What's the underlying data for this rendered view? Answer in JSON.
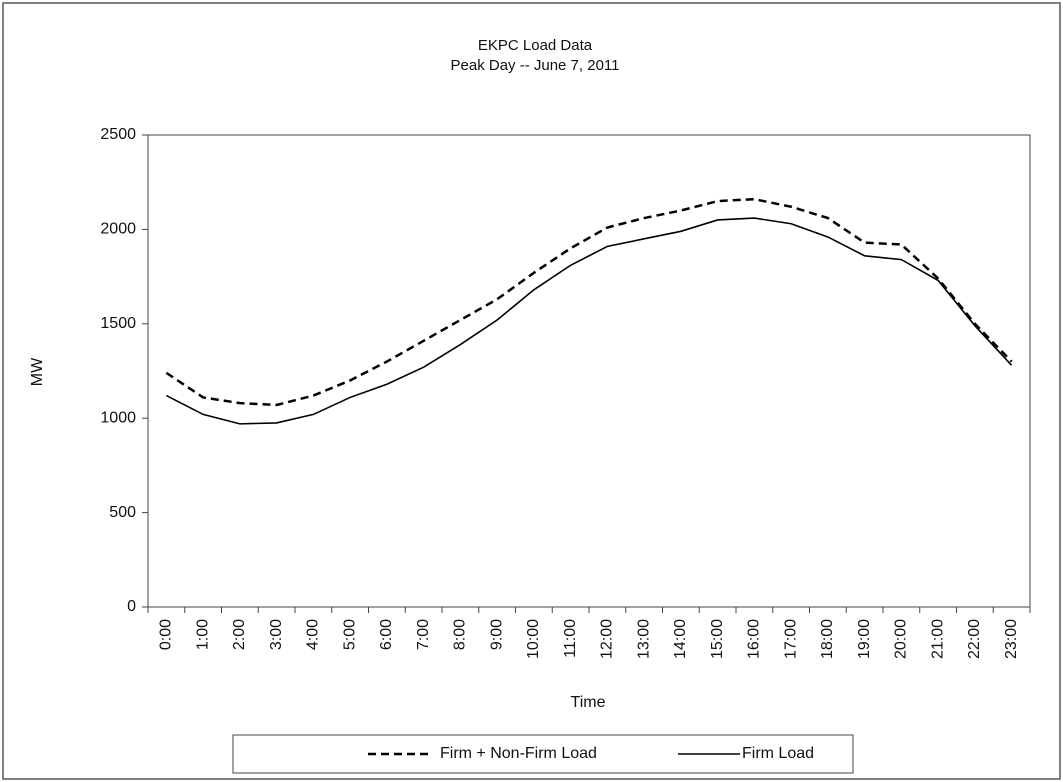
{
  "chart_data": {
    "type": "line",
    "title": "EKPC Load Data",
    "subtitle": "Peak Day -- June 7, 2011",
    "x_label": "Time",
    "y_label": "MW",
    "categories": [
      "0:00",
      "1:00",
      "2:00",
      "3:00",
      "4:00",
      "5:00",
      "6:00",
      "7:00",
      "8:00",
      "9:00",
      "10:00",
      "11:00",
      "12:00",
      "13:00",
      "14:00",
      "15:00",
      "16:00",
      "17:00",
      "18:00",
      "19:00",
      "20:00",
      "21:00",
      "22:00",
      "23:00"
    ],
    "series": [
      {
        "name": "Firm + Non-Firm Load",
        "color": "#000000",
        "dashed": true,
        "values": [
          1240,
          1110,
          1080,
          1070,
          1120,
          1200,
          1300,
          1410,
          1520,
          1630,
          1770,
          1900,
          2010,
          2060,
          2100,
          2150,
          2160,
          2120,
          2060,
          1930,
          1920,
          1740,
          1500,
          1300
        ]
      },
      {
        "name": "Firm Load",
        "color": "#000000",
        "dashed": false,
        "values": [
          1120,
          1020,
          970,
          975,
          1020,
          1110,
          1180,
          1270,
          1390,
          1520,
          1680,
          1810,
          1910,
          1950,
          1990,
          2050,
          2060,
          2030,
          1960,
          1860,
          1840,
          1730,
          1490,
          1280
        ]
      }
    ],
    "ylim": [
      0,
      2500
    ],
    "yticks": [
      0,
      500,
      1000,
      1500,
      2000,
      2500
    ],
    "grid": false,
    "legend": "bottom"
  }
}
